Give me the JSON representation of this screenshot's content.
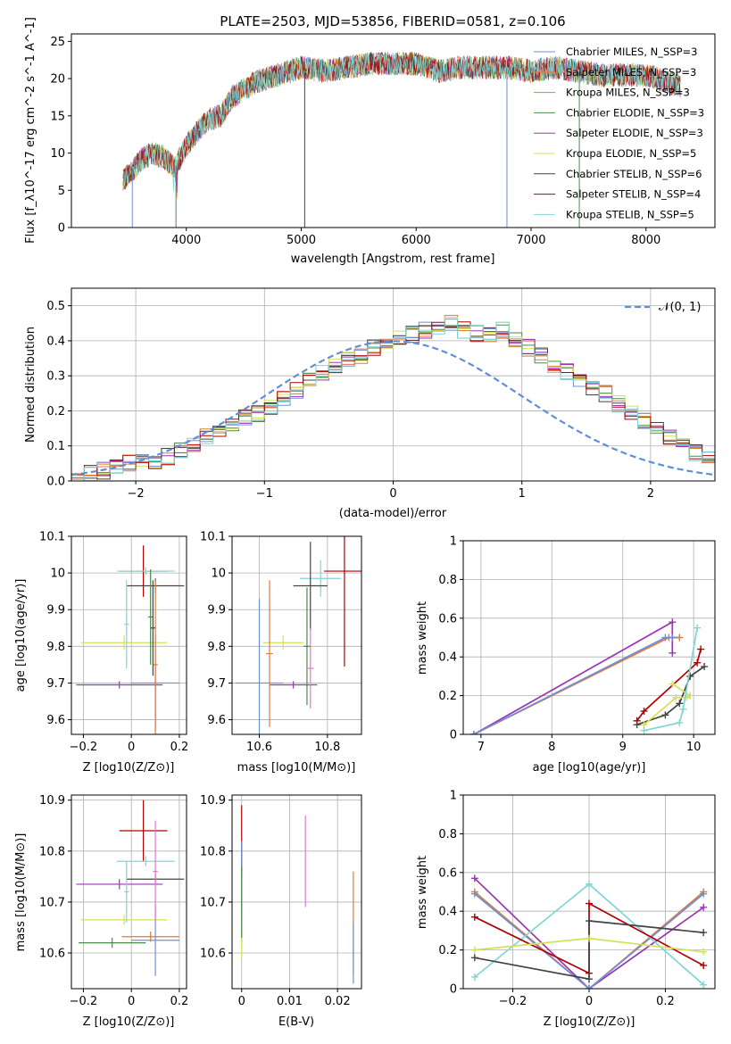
{
  "chart_data": [
    {
      "id": "spectrum",
      "type": "line",
      "title": "PLATE=2503, MJD=53856, FIBERID=0581, z=0.106",
      "xlabel": "wavelength [Angstrom, rest frame]",
      "ylabel": "Flux [f_λ10^-17 erg cm^-2 s^-1 A^-1]",
      "xlim": [
        3000,
        8600
      ],
      "ylim": [
        0,
        26
      ],
      "xticks": [
        4000,
        5000,
        6000,
        7000,
        8000
      ],
      "yticks": [
        0,
        5,
        10,
        15,
        20,
        25
      ],
      "grid": false,
      "legend_position": "top-right",
      "legend": [
        {
          "label": "Chabrier MILES, N_SSP=3",
          "color": "#6f8fd6"
        },
        {
          "label": "Salpeter MILES, N_SSP=3",
          "color": "#e07a3a"
        },
        {
          "label": "Kroupa MILES, N_SSP=3",
          "color": "#d9822b"
        },
        {
          "label": "Chabrier ELODIE, N_SSP=3",
          "color": "#4a8a4a"
        },
        {
          "label": "Salpeter ELODIE, N_SSP=3",
          "color": "#9b35b5"
        },
        {
          "label": "Kroupa ELODIE, N_SSP=5",
          "color": "#d4e157"
        },
        {
          "label": "Chabrier STELIB, N_SSP=6",
          "color": "#444444"
        },
        {
          "label": "Salpeter STELIB, N_SSP=4",
          "color": "#b00000"
        },
        {
          "label": "Kroupa STELIB, N_SSP=5",
          "color": "#7fd6d6"
        }
      ],
      "envelope": {
        "x": [
          3450,
          3500,
          3600,
          3700,
          3800,
          3900,
          4000,
          4100,
          4200,
          4300,
          4400,
          4500,
          4600,
          4800,
          5000,
          5200,
          5400,
          5600,
          5800,
          6000,
          6200,
          6400,
          6600,
          6800,
          7000,
          7200,
          7400,
          7600,
          7800,
          8000,
          8200,
          8300
        ],
        "y": [
          6.5,
          7.0,
          9.0,
          10.0,
          9.5,
          8.0,
          11.0,
          13.0,
          14.5,
          15.0,
          17.5,
          18.5,
          19.5,
          20.5,
          21.5,
          21.0,
          21.5,
          22.0,
          22.0,
          22.0,
          21.0,
          21.5,
          21.5,
          21.5,
          21.0,
          21.5,
          21.0,
          20.5,
          20.5,
          20.5,
          19.5,
          19.0
        ]
      },
      "dips": [
        {
          "x": 3530,
          "y": 0
        },
        {
          "x": 3910,
          "y": 0
        },
        {
          "x": 5030,
          "y": 0
        },
        {
          "x": 6790,
          "y": 0
        },
        {
          "x": 7420,
          "y": 0
        }
      ]
    },
    {
      "id": "residuals",
      "type": "area",
      "xlabel": "(data-model)/error",
      "ylabel": "Normed distribution",
      "xlim": [
        -2.5,
        2.5
      ],
      "ylim": [
        0,
        0.55
      ],
      "xticks": [
        -2,
        -1,
        0,
        1,
        2
      ],
      "yticks": [
        0.0,
        0.1,
        0.2,
        0.3,
        0.4,
        0.5
      ],
      "grid": true,
      "legend_position": "top-right",
      "legend": [
        {
          "label": "𝒩(0, 1)",
          "color": "#5f8fd9"
        }
      ],
      "bin_width": 0.1,
      "bins_start": -2.5,
      "histogram": [
        0.015,
        0.02,
        0.03,
        0.04,
        0.05,
        0.055,
        0.06,
        0.07,
        0.09,
        0.1,
        0.13,
        0.15,
        0.16,
        0.18,
        0.19,
        0.21,
        0.24,
        0.26,
        0.29,
        0.31,
        0.33,
        0.35,
        0.36,
        0.38,
        0.4,
        0.41,
        0.42,
        0.43,
        0.44,
        0.45,
        0.43,
        0.42,
        0.42,
        0.43,
        0.4,
        0.38,
        0.36,
        0.33,
        0.31,
        0.29,
        0.27,
        0.25,
        0.22,
        0.2,
        0.17,
        0.15,
        0.12,
        0.1,
        0.08,
        0.065
      ],
      "series_colors": [
        "#6f8fd6",
        "#e07a3a",
        "#d9822b",
        "#4a8a4a",
        "#9b35b5",
        "#d4e157",
        "#444444",
        "#b00000",
        "#7fd6d6"
      ]
    },
    {
      "id": "age-vs-Z",
      "type": "scatter",
      "xlabel": "Z [log10(Z/Z⊙)]",
      "ylabel": "age [log10(age/yr)]",
      "xlim": [
        -0.25,
        0.23
      ],
      "ylim": [
        9.56,
        10.1
      ],
      "xticks": [
        -0.2,
        0.0,
        0.2
      ],
      "yticks": [
        9.6,
        9.7,
        9.8,
        9.9,
        10.0,
        10.1
      ],
      "grid": true,
      "points": [
        {
          "x": 0.05,
          "y": 10.005,
          "xerr": 0.1,
          "yerr": 0.07,
          "color": "#b00000"
        },
        {
          "x": 0.06,
          "y": 10.005,
          "xerr": 0.12,
          "yerr": 0.01,
          "color": "#7fd6d6"
        },
        {
          "x": 0.1,
          "y": 9.965,
          "xerr": 0.12,
          "yerr": 0.02,
          "color": "#444444"
        },
        {
          "x": -0.03,
          "y": 9.81,
          "xerr": 0.18,
          "yerr": 0.02,
          "color": "#d4e157"
        },
        {
          "x": 0.1,
          "y": 9.7,
          "xerr": 0.1,
          "yerr": 0.13,
          "color": "#6f8fd6"
        },
        {
          "x": -0.05,
          "y": 9.695,
          "xerr": 0.18,
          "yerr": 0.01,
          "color": "#9b35b5"
        },
        {
          "x": 0.1,
          "y": 9.75,
          "xerr": 0.01,
          "yerr": 0.23,
          "color": "#e07a3a"
        },
        {
          "x": 0.08,
          "y": 9.88,
          "xerr": 0.01,
          "yerr": 0.13,
          "color": "#4a8a4a"
        },
        {
          "x": -0.02,
          "y": 9.86,
          "xerr": 0.01,
          "yerr": 0.12,
          "color": "#7fd6d6"
        },
        {
          "x": 0.09,
          "y": 9.85,
          "xerr": 0.01,
          "yerr": 0.13,
          "color": "#444444"
        }
      ]
    },
    {
      "id": "age-vs-mass",
      "type": "scatter",
      "xlabel": "mass [log10(M/M⊙)]",
      "ylabel": "",
      "xlim": [
        10.52,
        10.9
      ],
      "ylim": [
        9.56,
        10.1
      ],
      "xticks": [
        10.6,
        10.8
      ],
      "yticks": [
        9.6,
        9.7,
        9.8,
        9.9,
        10.0,
        10.1
      ],
      "grid": true,
      "points": [
        {
          "x": 10.85,
          "y": 10.005,
          "xerr": 0.06,
          "yerr": 0.26,
          "color": "#b00000"
        },
        {
          "x": 10.78,
          "y": 9.985,
          "xerr": 0.06,
          "yerr": 0.05,
          "color": "#7fd6d6"
        },
        {
          "x": 10.75,
          "y": 9.965,
          "xerr": 0.05,
          "yerr": 0.12,
          "color": "#444444"
        },
        {
          "x": 10.67,
          "y": 9.81,
          "xerr": 0.06,
          "yerr": 0.02,
          "color": "#d4e157"
        },
        {
          "x": 10.6,
          "y": 9.7,
          "xerr": 0.07,
          "yerr": 0.23,
          "color": "#6f8fd6"
        },
        {
          "x": 10.7,
          "y": 9.695,
          "xerr": 0.07,
          "yerr": 0.01,
          "color": "#9b35b5"
        },
        {
          "x": 10.63,
          "y": 9.78,
          "xerr": 0.01,
          "yerr": 0.2,
          "color": "#e07a3a"
        },
        {
          "x": 10.74,
          "y": 9.8,
          "xerr": 0.01,
          "yerr": 0.16,
          "color": "#4a8a4a"
        },
        {
          "x": 10.75,
          "y": 9.74,
          "xerr": 0.01,
          "yerr": 0.11,
          "color": "#e079c9"
        }
      ]
    },
    {
      "id": "mass-weight-vs-age",
      "type": "line",
      "xlabel": "age [log10(age/yr)]",
      "ylabel": "mass weight",
      "xlim": [
        6.75,
        10.3
      ],
      "ylim": [
        0,
        1.0
      ],
      "xticks": [
        7,
        8,
        9,
        10
      ],
      "yticks": [
        0.0,
        0.2,
        0.4,
        0.6,
        0.8,
        1.0
      ],
      "grid": true,
      "series": [
        {
          "color": "#9b35b5",
          "points": [
            [
              6.9,
              0.0
            ],
            [
              9.7,
              0.58
            ],
            [
              9.7,
              0.42
            ]
          ]
        },
        {
          "color": "#e07a3a",
          "points": [
            [
              6.9,
              0.0
            ],
            [
              9.65,
              0.5
            ],
            [
              9.8,
              0.5
            ]
          ]
        },
        {
          "color": "#6f8fd6",
          "points": [
            [
              6.9,
              0.0
            ],
            [
              9.6,
              0.5
            ],
            [
              9.7,
              0.5
            ]
          ]
        },
        {
          "color": "#b00000",
          "points": [
            [
              9.2,
              0.07
            ],
            [
              9.3,
              0.12
            ],
            [
              10.05,
              0.37
            ],
            [
              10.1,
              0.44
            ]
          ]
        },
        {
          "color": "#444444",
          "points": [
            [
              9.2,
              0.05
            ],
            [
              9.6,
              0.1
            ],
            [
              9.8,
              0.16
            ],
            [
              9.95,
              0.3
            ],
            [
              10.15,
              0.35
            ]
          ]
        },
        {
          "color": "#d4e157",
          "points": [
            [
              9.3,
              0.05
            ],
            [
              9.75,
              0.19
            ],
            [
              9.9,
              0.19
            ],
            [
              9.95,
              0.2
            ],
            [
              9.7,
              0.26
            ]
          ]
        },
        {
          "color": "#7fd6d6",
          "points": [
            [
              9.3,
              0.02
            ],
            [
              9.8,
              0.06
            ],
            [
              9.85,
              0.13
            ],
            [
              10.05,
              0.55
            ]
          ]
        }
      ]
    },
    {
      "id": "mass-vs-Z",
      "type": "scatter",
      "xlabel": "Z [log10(Z/Z⊙)]",
      "ylabel": "mass [log10(M/M⊙)]",
      "xlim": [
        -0.25,
        0.23
      ],
      "ylim": [
        10.53,
        10.91
      ],
      "xticks": [
        -0.2,
        0.0,
        0.2
      ],
      "yticks": [
        10.6,
        10.7,
        10.8,
        10.9
      ],
      "grid": true,
      "points": [
        {
          "x": 0.05,
          "y": 10.84,
          "xerr": 0.1,
          "yerr": 0.06,
          "color": "#b00000"
        },
        {
          "x": 0.06,
          "y": 10.78,
          "xerr": 0.12,
          "yerr": 0.01,
          "color": "#7fd6d6"
        },
        {
          "x": 0.1,
          "y": 10.745,
          "xerr": 0.12,
          "yerr": 0.01,
          "color": "#444444"
        },
        {
          "x": -0.05,
          "y": 10.735,
          "xerr": 0.18,
          "yerr": 0.01,
          "color": "#9b35b5"
        },
        {
          "x": -0.03,
          "y": 10.665,
          "xerr": 0.18,
          "yerr": 0.01,
          "color": "#d4e157"
        },
        {
          "x": 0.08,
          "y": 10.632,
          "xerr": 0.12,
          "yerr": 0.01,
          "color": "#e07a3a"
        },
        {
          "x": 0.1,
          "y": 10.625,
          "xerr": 0.1,
          "yerr": 0.07,
          "color": "#6f8fd6"
        },
        {
          "x": -0.08,
          "y": 10.62,
          "xerr": 0.14,
          "yerr": 0.01,
          "color": "#4a8a4a"
        },
        {
          "x": -0.02,
          "y": 10.72,
          "xerr": 0.01,
          "yerr": 0.06,
          "color": "#7fd6d6"
        },
        {
          "x": 0.1,
          "y": 10.76,
          "xerr": 0.01,
          "yerr": 0.1,
          "color": "#e079c9"
        }
      ]
    },
    {
      "id": "mass-vs-ebv",
      "type": "scatter",
      "xlabel": "E(B-V)",
      "ylabel": "",
      "xlim": [
        -0.002,
        0.025
      ],
      "ylim": [
        10.53,
        10.91
      ],
      "xticks": [
        0.0,
        0.01,
        0.02
      ],
      "ytick_labels": [
        "10.6",
        "10.7",
        "10.8",
        "10.9"
      ],
      "yticks": [
        10.6,
        10.7,
        10.8,
        10.9
      ],
      "grid": true,
      "points": [
        {
          "x": 0.0,
          "y": 10.82,
          "yerr": 0.07,
          "color": "#b00000"
        },
        {
          "x": 0.0,
          "y": 10.72,
          "yerr": 0.1,
          "color": "#6f8fd6"
        },
        {
          "x": 0.0,
          "y": 10.63,
          "yerr": 0.04,
          "color": "#d4e157"
        },
        {
          "x": 0.0,
          "y": 10.7,
          "yerr": 0.07,
          "color": "#4a8a4a"
        },
        {
          "x": 0.0133,
          "y": 10.78,
          "yerr": 0.09,
          "color": "#e079c9"
        },
        {
          "x": 0.0233,
          "y": 10.66,
          "yerr": 0.1,
          "color": "#e07a3a"
        },
        {
          "x": 0.0233,
          "y": 10.6,
          "yerr": 0.06,
          "color": "#6f8fd6"
        }
      ]
    },
    {
      "id": "mass-weight-vs-Z",
      "type": "line",
      "xlabel": "Z [log10(Z/Z⊙)]",
      "ylabel": "mass weight",
      "xlim": [
        -0.33,
        0.33
      ],
      "ylim": [
        0,
        1.0
      ],
      "xticks": [
        -0.2,
        0.0,
        0.2
      ],
      "yticks": [
        0.0,
        0.2,
        0.4,
        0.6,
        0.8,
        1.0
      ],
      "grid": true,
      "series": [
        {
          "color": "#9b35b5",
          "points": [
            [
              -0.3,
              0.57
            ],
            [
              0.0,
              0.0
            ],
            [
              0.3,
              0.42
            ]
          ]
        },
        {
          "color": "#e07a3a",
          "points": [
            [
              -0.3,
              0.5
            ],
            [
              0.0,
              0.0
            ],
            [
              0.3,
              0.5
            ]
          ]
        },
        {
          "color": "#6f8fd6",
          "points": [
            [
              -0.3,
              0.49
            ],
            [
              0.0,
              0.0
            ],
            [
              0.3,
              0.49
            ]
          ]
        },
        {
          "color": "#7fd6d6",
          "points": [
            [
              -0.3,
              0.06
            ],
            [
              0.0,
              0.54
            ],
            [
              0.3,
              0.02
            ]
          ]
        },
        {
          "color": "#b00000",
          "points": [
            [
              -0.3,
              0.37
            ],
            [
              0.0,
              0.08
            ],
            [
              0.0,
              0.44
            ],
            [
              0.3,
              0.12
            ]
          ]
        },
        {
          "color": "#444444",
          "points": [
            [
              -0.3,
              0.16
            ],
            [
              0.0,
              0.05
            ],
            [
              0.0,
              0.35
            ],
            [
              0.3,
              0.29
            ]
          ]
        },
        {
          "color": "#d4e157",
          "points": [
            [
              -0.3,
              0.2
            ],
            [
              0.0,
              0.26
            ],
            [
              0.3,
              0.19
            ]
          ]
        }
      ]
    }
  ]
}
